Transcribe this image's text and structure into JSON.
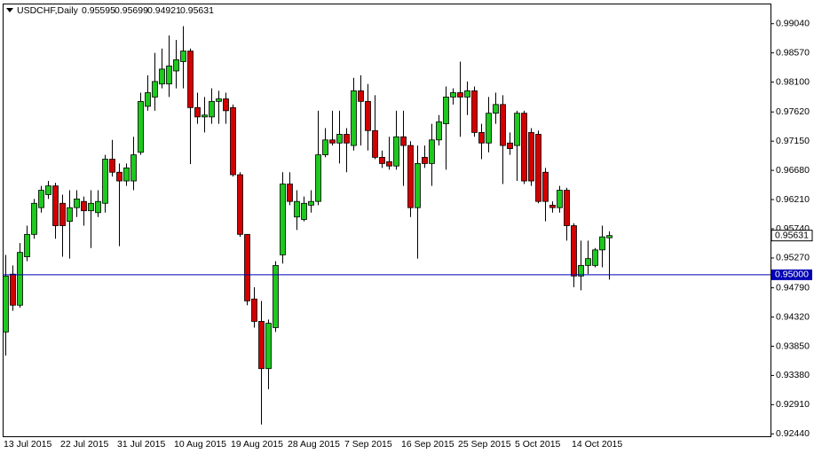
{
  "chart_data": {
    "type": "candlestick",
    "title": "USDCHF,Daily",
    "categories": [
      "13 Jul 2015",
      null,
      null,
      null,
      null,
      null,
      null,
      null,
      "22 Jul 2015",
      null,
      null,
      null,
      null,
      null,
      null,
      null,
      "31 Jul 2015",
      null,
      null,
      null,
      null,
      null,
      null,
      null,
      "10 Aug 2015",
      null,
      null,
      null,
      null,
      null,
      null,
      null,
      "19 Aug 2015",
      null,
      null,
      null,
      null,
      null,
      null,
      null,
      "28 Aug 2015",
      null,
      null,
      null,
      null,
      null,
      null,
      null,
      "7 Sep 2015",
      null,
      null,
      null,
      null,
      null,
      null,
      null,
      "16 Sep 2015",
      null,
      null,
      null,
      null,
      null,
      null,
      null,
      "25 Sep 2015",
      null,
      null,
      null,
      null,
      null,
      null,
      null,
      "5 Oct 2015",
      null,
      null,
      null,
      null,
      null,
      null,
      null,
      "14 Oct 2015",
      null,
      null,
      null,
      null,
      null
    ],
    "open": [
      0.9408,
      0.9501,
      0.9451,
      0.9529,
      0.9565,
      0.9608,
      0.9629,
      0.9643,
      0.9615,
      0.9586,
      0.9608,
      0.9618,
      0.9603,
      0.96,
      0.9615,
      0.9686,
      0.9665,
      0.9651,
      0.9651,
      0.9697,
      0.9771,
      0.9786,
      0.9807,
      0.9807,
      0.9828,
      0.9843,
      0.986,
      0.9769,
      0.9754,
      0.9754,
      0.9779,
      0.9783,
      0.9769,
      0.9661,
      0.9565,
      0.9461,
      0.9425,
      0.9349,
      0.9415,
      0.9532,
      0.9646,
      0.9593,
      0.9589,
      0.9612,
      0.9618,
      0.9693,
      0.9717,
      0.9712,
      0.9726,
      0.9708,
      0.9796,
      0.9779,
      0.9732,
      0.9689,
      0.9682,
      0.9675,
      0.9722,
      0.9708,
      0.9608,
      0.9689,
      0.9679,
      0.9717,
      0.9743,
      0.9786,
      0.9793,
      0.9786,
      0.9796,
      0.9729,
      0.9712,
      0.976,
      0.9774,
      0.9712,
      0.9708,
      0.976,
      0.9729,
      0.9726,
      0.9665,
      0.9612,
      0.9608,
      0.9636,
      0.9579,
      0.9498,
      0.9515,
      0.9515,
      0.954,
      0.95595
    ],
    "high": [
      0.9532,
      0.9515,
      0.9551,
      0.9579,
      0.9622,
      0.9643,
      0.9651,
      0.9648,
      0.9629,
      0.9636,
      0.9636,
      0.9626,
      0.9636,
      0.9636,
      0.9693,
      0.9717,
      0.9679,
      0.9679,
      0.9722,
      0.9793,
      0.9821,
      0.9857,
      0.9864,
      0.9885,
      0.9878,
      0.99,
      0.9864,
      0.9793,
      0.9786,
      0.98,
      0.9796,
      0.9793,
      0.9774,
      0.9665,
      0.9565,
      0.948,
      0.9458,
      0.9428,
      0.9522,
      0.9665,
      0.9665,
      0.9636,
      0.9626,
      0.9636,
      0.9764,
      0.9736,
      0.9764,
      0.9764,
      0.9736,
      0.9817,
      0.9821,
      0.9807,
      0.9789,
      0.97,
      0.9722,
      0.9764,
      0.9764,
      0.9715,
      0.9708,
      0.9708,
      0.9743,
      0.9757,
      0.9803,
      0.98,
      0.9843,
      0.9811,
      0.9803,
      0.9743,
      0.9786,
      0.9793,
      0.9789,
      0.9729,
      0.9764,
      0.9764,
      0.9736,
      0.9732,
      0.9672,
      0.9618,
      0.9643,
      0.964,
      0.9583,
      0.9555,
      0.9555,
      0.9543,
      0.9579,
      0.95699
    ],
    "low": [
      0.937,
      0.9442,
      0.9447,
      0.9522,
      0.9558,
      0.96,
      0.9622,
      0.9558,
      0.9529,
      0.9526,
      0.9593,
      0.9579,
      0.9543,
      0.9593,
      0.96,
      0.9658,
      0.9546,
      0.9643,
      0.9636,
      0.9693,
      0.9764,
      0.9764,
      0.98,
      0.9786,
      0.98,
      0.98,
      0.9678,
      0.9743,
      0.9729,
      0.9743,
      0.9743,
      0.9743,
      0.9658,
      0.9561,
      0.9451,
      0.9415,
      0.9259,
      0.9316,
      0.9408,
      0.9518,
      0.9612,
      0.9572,
      0.9586,
      0.96,
      0.9612,
      0.9689,
      0.9708,
      0.9679,
      0.9665,
      0.97,
      0.9708,
      0.97,
      0.9686,
      0.9672,
      0.9669,
      0.9669,
      0.9643,
      0.9593,
      0.9526,
      0.9672,
      0.9643,
      0.9708,
      0.9669,
      0.9774,
      0.9722,
      0.9757,
      0.9722,
      0.9686,
      0.9697,
      0.9743,
      0.9646,
      0.9693,
      0.9651,
      0.9646,
      0.9643,
      0.9615,
      0.9586,
      0.96,
      0.96,
      0.9555,
      0.948,
      0.9475,
      0.9501,
      0.9512,
      0.9512,
      0.94921
    ],
    "close": [
      0.9498,
      0.9451,
      0.9536,
      0.9565,
      0.9615,
      0.9636,
      0.9643,
      0.9579,
      0.9579,
      0.9608,
      0.9622,
      0.9603,
      0.9615,
      0.9618,
      0.9686,
      0.9665,
      0.9651,
      0.9672,
      0.9693,
      0.9779,
      0.9793,
      0.9811,
      0.9831,
      0.9836,
      0.9846,
      0.986,
      0.9769,
      0.9754,
      0.9757,
      0.9779,
      0.9783,
      0.9764,
      0.9661,
      0.9565,
      0.9458,
      0.9425,
      0.9349,
      0.9422,
      0.9515,
      0.9646,
      0.9618,
      0.9618,
      0.9615,
      0.9618,
      0.9693,
      0.9717,
      0.9712,
      0.9726,
      0.9712,
      0.9796,
      0.9779,
      0.9732,
      0.9689,
      0.9679,
      0.9675,
      0.9722,
      0.9708,
      0.9608,
      0.9679,
      0.9679,
      0.9717,
      0.9746,
      0.9786,
      0.9793,
      0.9786,
      0.9796,
      0.9729,
      0.9712,
      0.976,
      0.9774,
      0.9708,
      0.9703,
      0.976,
      0.9651,
      0.9651,
      0.9618,
      0.9618,
      0.9608,
      0.9636,
      0.9579,
      0.9498,
      0.9515,
      0.9526,
      0.954,
      0.9561,
      0.95631
    ],
    "up_color": "#1ec81e",
    "down_color": "#d20000",
    "ylim": [
      0.9243,
      0.9935
    ],
    "yticks": [
      {
        "value": 0.9904,
        "label": "0.99040"
      },
      {
        "value": 0.9857,
        "label": "0.98570"
      },
      {
        "value": 0.981,
        "label": "0.98100"
      },
      {
        "value": 0.9762,
        "label": "0.97620"
      },
      {
        "value": 0.9715,
        "label": "0.97150"
      },
      {
        "value": 0.9668,
        "label": "0.96680"
      },
      {
        "value": 0.9621,
        "label": "0.96210"
      },
      {
        "value": 0.9574,
        "label": "0.95740"
      },
      {
        "value": 0.9527,
        "label": "0.95270"
      },
      {
        "value": 0.9479,
        "label": "0.94790"
      },
      {
        "value": 0.9432,
        "label": "0.94320"
      },
      {
        "value": 0.9385,
        "label": "0.93850"
      },
      {
        "value": 0.9338,
        "label": "0.93380"
      },
      {
        "value": 0.9291,
        "label": "0.92910"
      },
      {
        "value": 0.9244,
        "label": "0.92440"
      }
    ],
    "hlines": [
      {
        "value": 0.95,
        "label": "0.95000",
        "color": "#0000b4"
      }
    ]
  }
}
